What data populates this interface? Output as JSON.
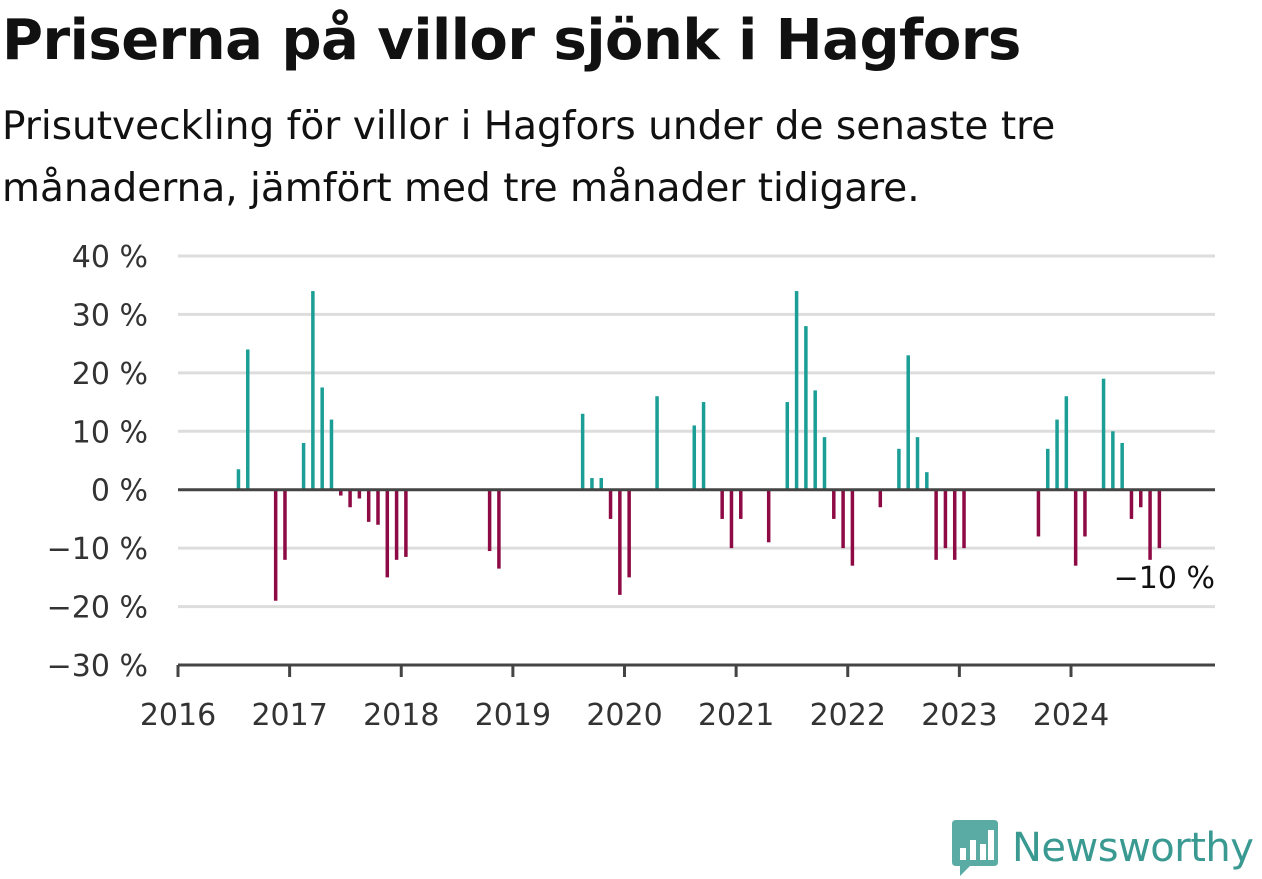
{
  "title": "Priserna på villor sjönk i Hagfors",
  "subtitle": "Prisutveckling för villor i Hagfors under de senaste tre månaderna, jämfört med tre månader tidigare.",
  "brand": {
    "name": "Newsworthy",
    "logo_icon": "bar-chart-flag-icon"
  },
  "colors": {
    "positive": "#1a9e96",
    "negative": "#8e0a44",
    "grid": "#dddddd",
    "axis": "#444444"
  },
  "chart_data": {
    "type": "bar",
    "title": "Priserna på villor sjönk i Hagfors",
    "subtitle": "Prisutveckling för villor i Hagfors under de senaste tre månaderna, jämfört med tre månader tidigare.",
    "ylim": [
      -30,
      40
    ],
    "yticks": [
      40,
      30,
      20,
      10,
      0,
      -10,
      -20,
      -30
    ],
    "ytick_labels": [
      "40 %",
      "30 %",
      "20 %",
      "10 %",
      "0 %",
      "−10 %",
      "−20 %",
      "−30 %"
    ],
    "x_range": [
      "2016-01",
      "2025-03"
    ],
    "xticks": [
      "2016",
      "2017",
      "2018",
      "2019",
      "2020",
      "2021",
      "2022",
      "2023",
      "2024"
    ],
    "grid": true,
    "end_label": "−10 %",
    "series": [
      {
        "unit": "%",
        "points": [
          {
            "x": "2016-07",
            "y": 3.5
          },
          {
            "x": "2016-08",
            "y": 24
          },
          {
            "x": "2016-11",
            "y": -19
          },
          {
            "x": "2016-12",
            "y": -12
          },
          {
            "x": "2017-02",
            "y": 8
          },
          {
            "x": "2017-03",
            "y": 34
          },
          {
            "x": "2017-04",
            "y": 17.5
          },
          {
            "x": "2017-05",
            "y": 12
          },
          {
            "x": "2017-06",
            "y": -1
          },
          {
            "x": "2017-07",
            "y": -3
          },
          {
            "x": "2017-08",
            "y": -1.5
          },
          {
            "x": "2017-09",
            "y": -5.5
          },
          {
            "x": "2017-10",
            "y": -6
          },
          {
            "x": "2017-11",
            "y": -15
          },
          {
            "x": "2017-12",
            "y": -12
          },
          {
            "x": "2018-01",
            "y": -11.5
          },
          {
            "x": "2018-10",
            "y": -10.5
          },
          {
            "x": "2018-11",
            "y": -13.5
          },
          {
            "x": "2019-08",
            "y": 13
          },
          {
            "x": "2019-09",
            "y": 2
          },
          {
            "x": "2019-10",
            "y": 2
          },
          {
            "x": "2019-11",
            "y": -5
          },
          {
            "x": "2019-12",
            "y": -18
          },
          {
            "x": "2020-01",
            "y": -15
          },
          {
            "x": "2020-04",
            "y": 16
          },
          {
            "x": "2020-08",
            "y": 11
          },
          {
            "x": "2020-09",
            "y": 15
          },
          {
            "x": "2020-11",
            "y": -5
          },
          {
            "x": "2020-12",
            "y": -10
          },
          {
            "x": "2021-01",
            "y": -5
          },
          {
            "x": "2021-04",
            "y": -9
          },
          {
            "x": "2021-06",
            "y": 15
          },
          {
            "x": "2021-07",
            "y": 34
          },
          {
            "x": "2021-08",
            "y": 28
          },
          {
            "x": "2021-09",
            "y": 17
          },
          {
            "x": "2021-10",
            "y": 9
          },
          {
            "x": "2021-11",
            "y": -5
          },
          {
            "x": "2021-12",
            "y": -10
          },
          {
            "x": "2022-01",
            "y": -13
          },
          {
            "x": "2022-04",
            "y": -3
          },
          {
            "x": "2022-06",
            "y": 7
          },
          {
            "x": "2022-07",
            "y": 23
          },
          {
            "x": "2022-08",
            "y": 9
          },
          {
            "x": "2022-09",
            "y": 3
          },
          {
            "x": "2022-10",
            "y": -12
          },
          {
            "x": "2022-11",
            "y": -10
          },
          {
            "x": "2022-12",
            "y": -12
          },
          {
            "x": "2023-01",
            "y": -10
          },
          {
            "x": "2023-09",
            "y": -8
          },
          {
            "x": "2023-10",
            "y": 7
          },
          {
            "x": "2023-11",
            "y": 12
          },
          {
            "x": "2023-12",
            "y": 16
          },
          {
            "x": "2024-01",
            "y": -13
          },
          {
            "x": "2024-02",
            "y": -8
          },
          {
            "x": "2024-04",
            "y": 19
          },
          {
            "x": "2024-05",
            "y": 10
          },
          {
            "x": "2024-06",
            "y": 8
          },
          {
            "x": "2024-07",
            "y": -5
          },
          {
            "x": "2024-08",
            "y": -3
          },
          {
            "x": "2024-09",
            "y": -12
          },
          {
            "x": "2024-10",
            "y": -10
          }
        ]
      }
    ]
  }
}
